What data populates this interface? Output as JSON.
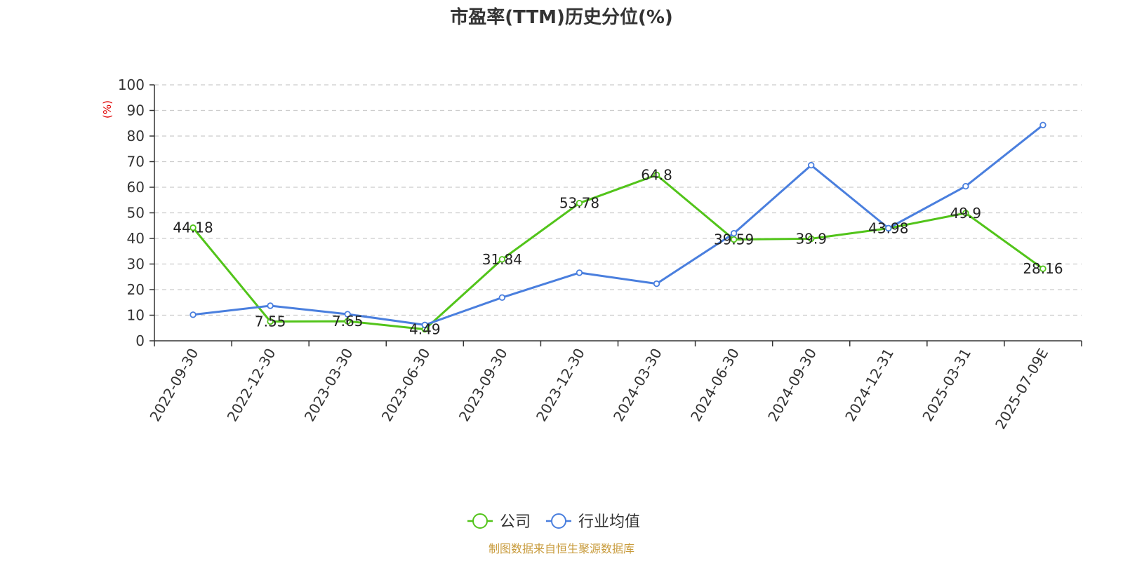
{
  "chart_data": {
    "type": "line",
    "title": "市盈率(TTM)历史分位(%)",
    "ylabel": "(%)",
    "ylim": [
      0,
      100
    ],
    "y_ticks": [
      0,
      10,
      20,
      30,
      40,
      50,
      60,
      70,
      80,
      90,
      100
    ],
    "grid": "horizontal-dashed",
    "legend_position": "bottom-center",
    "categories": [
      "2022-09-30",
      "2022-12-30",
      "2023-03-30",
      "2023-06-30",
      "2023-09-30",
      "2023-12-30",
      "2024-03-30",
      "2024-06-30",
      "2024-09-30",
      "2024-12-31",
      "2025-03-31",
      "2025-07-09E"
    ],
    "series": [
      {
        "name": "公司",
        "color": "#52c41a",
        "values": [
          44.18,
          7.55,
          7.65,
          4.49,
          31.84,
          53.78,
          64.8,
          39.59,
          39.9,
          43.98,
          49.9,
          28.16
        ],
        "labels": [
          "44.18",
          "7.55",
          "7.65",
          "4.49",
          "31.84",
          "53.78",
          "64.8",
          "39.59",
          "39.9",
          "43.98",
          "49.9",
          "28.16"
        ]
      },
      {
        "name": "行业均值",
        "color": "#4a7fde",
        "values": [
          10.2,
          13.7,
          10.4,
          6.2,
          16.9,
          26.6,
          22.3,
          42.0,
          68.6,
          44.0,
          60.4,
          84.3
        ]
      }
    ],
    "source": "制图数据来自恒生聚源数据库"
  }
}
